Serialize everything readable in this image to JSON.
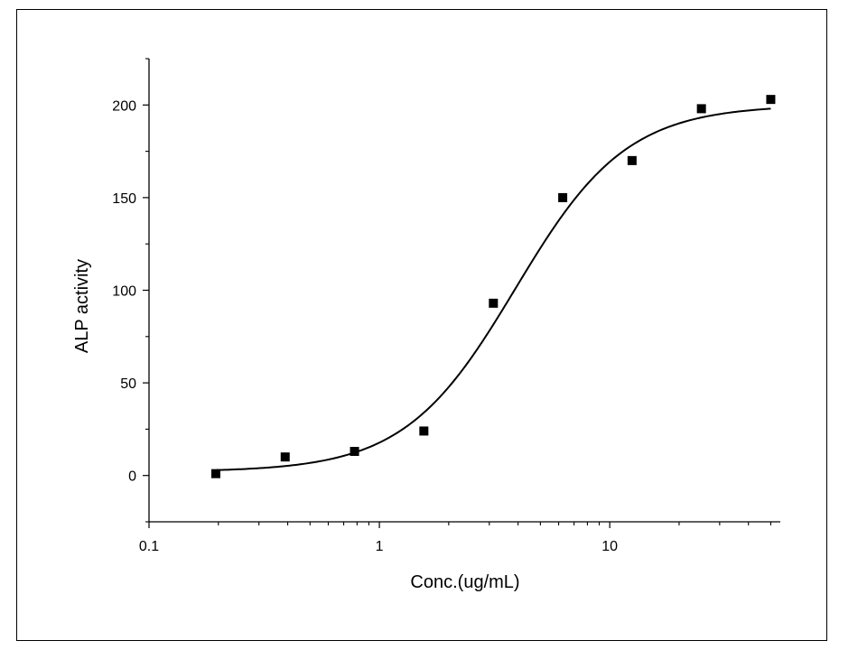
{
  "chart_data": {
    "type": "scatter",
    "title": "",
    "xlabel": "Conc.(ug/mL)",
    "ylabel": "ALP activity",
    "x_scale": "log",
    "xlim": [
      0.1,
      55
    ],
    "ylim": [
      -25,
      225
    ],
    "x_ticks": [
      0.1,
      1,
      10
    ],
    "x_tick_labels": [
      "0.1",
      "1",
      "10"
    ],
    "y_ticks": [
      0,
      50,
      100,
      150,
      200
    ],
    "y_tick_labels": [
      "0",
      "50",
      "100",
      "150",
      "200"
    ],
    "grid": false,
    "legend": "none",
    "series": [
      {
        "marker": "square",
        "color": "#000000",
        "x": [
          0.195,
          0.39,
          0.78,
          1.56,
          3.125,
          6.25,
          12.5,
          25,
          50
        ],
        "y": [
          1,
          10,
          13,
          24,
          93,
          150,
          170,
          198,
          203
        ]
      }
    ],
    "fit_curve": {
      "type": "logistic",
      "color": "#000000",
      "bottom": 2,
      "top": 200,
      "ec50": 3.9,
      "hill": 1.8,
      "x_range": [
        0.195,
        50
      ]
    }
  }
}
